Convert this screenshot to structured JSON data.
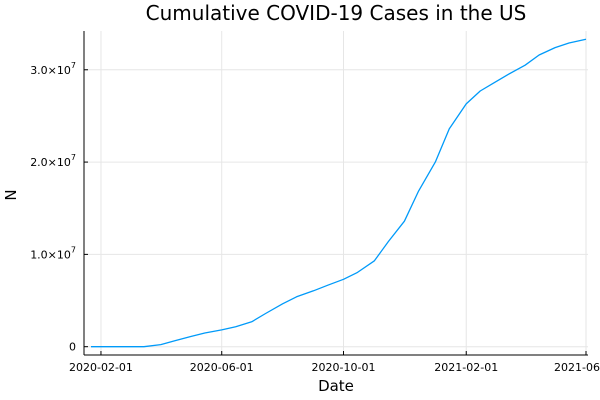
{
  "chart_data": {
    "type": "line",
    "title": "Cumulative COVID-19 Cases in the US",
    "xlabel": "Date",
    "ylabel": "N",
    "x_ticks": [
      "2020-02-01",
      "2020-06-01",
      "2020-10-01",
      "2021-02-01",
      "2021-06-01"
    ],
    "y_ticks": [
      {
        "value": 0,
        "mantissa": "0",
        "exponent": ""
      },
      {
        "value": 10000000,
        "mantissa": "1.0×10",
        "exponent": "7"
      },
      {
        "value": 20000000,
        "mantissa": "2.0×10",
        "exponent": "7"
      },
      {
        "value": 30000000,
        "mantissa": "3.0×10",
        "exponent": "7"
      }
    ],
    "xlim": [
      "2020-01-15",
      "2021-06-03"
    ],
    "ylim": [
      -900000,
      34200000
    ],
    "grid": true,
    "legend": "none",
    "line_color": "#009af9",
    "series": [
      {
        "x": [
          "2020-01-22",
          "2020-02-15",
          "2020-03-01",
          "2020-03-15",
          "2020-04-01",
          "2020-04-15",
          "2020-05-01",
          "2020-05-15",
          "2020-06-01",
          "2020-06-15",
          "2020-07-01",
          "2020-07-15",
          "2020-08-01",
          "2020-08-15",
          "2020-09-01",
          "2020-09-15",
          "2020-10-01",
          "2020-10-15",
          "2020-11-01",
          "2020-11-15",
          "2020-12-01",
          "2020-12-15",
          "2021-01-01",
          "2021-01-15",
          "2021-02-01",
          "2021-02-15",
          "2021-03-01",
          "2021-03-15",
          "2021-04-01",
          "2021-04-15",
          "2021-05-01",
          "2021-05-15",
          "2021-06-01"
        ],
        "y": [
          0,
          15,
          70,
          3500,
          230000,
          650000,
          1100000,
          1480000,
          1820000,
          2150000,
          2700000,
          3600000,
          4650000,
          5400000,
          6050000,
          6650000,
          7300000,
          8050000,
          9300000,
          11400000,
          13600000,
          16800000,
          20000000,
          23600000,
          26300000,
          27700000,
          28600000,
          29500000,
          30500000,
          31600000,
          32400000,
          32900000,
          33300000
        ]
      }
    ]
  }
}
